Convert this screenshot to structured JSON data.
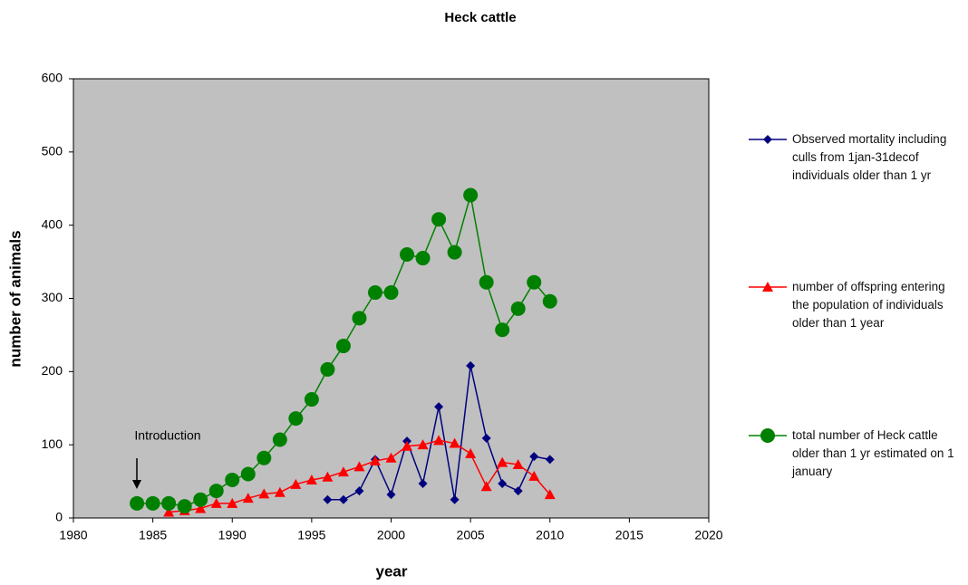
{
  "chart_data": {
    "type": "line",
    "title": "Heck cattle",
    "x_label": "year",
    "y_label": "number of animals",
    "annotation": "Introduction",
    "x": [
      1984,
      1985,
      1986,
      1987,
      1988,
      1989,
      1990,
      1991,
      1992,
      1993,
      1994,
      1995,
      1996,
      1997,
      1998,
      1999,
      2000,
      2001,
      2002,
      2003,
      2004,
      2005,
      2006,
      2007,
      2008,
      2009,
      2010
    ],
    "xlim": [
      1980,
      2020
    ],
    "xticks": [
      1980,
      1985,
      1990,
      1995,
      2000,
      2005,
      2010,
      2015,
      2020
    ],
    "ylim": [
      0,
      600
    ],
    "yticks": [
      0,
      100,
      200,
      300,
      400,
      500,
      600
    ],
    "grid": false,
    "legend": "right",
    "series": [
      {
        "name": "Observed mortality including culls from 1jan-31decof individuals older than 1 yr",
        "color": "#00007f",
        "marker": "diamond",
        "values": [
          null,
          null,
          null,
          null,
          null,
          null,
          null,
          null,
          null,
          null,
          null,
          null,
          25,
          25,
          37,
          80,
          32,
          105,
          47,
          152,
          25,
          208,
          109,
          47,
          37,
          84,
          80
        ]
      },
      {
        "name": "number of offspring entering the population of individuals older than 1 year",
        "color": "#ff0000",
        "marker": "triangle",
        "values": [
          null,
          null,
          8,
          10,
          13,
          20,
          20,
          27,
          33,
          35,
          46,
          52,
          56,
          63,
          70,
          78,
          82,
          98,
          100,
          106,
          102,
          88,
          43,
          76,
          73,
          57,
          32
        ]
      },
      {
        "name": "total number of Heck cattle  older than 1 yr estimated on 1 january",
        "color": "#008000",
        "marker": "circle",
        "values": [
          20,
          20,
          20,
          16,
          25,
          37,
          52,
          60,
          82,
          107,
          136,
          162,
          203,
          235,
          273,
          308,
          308,
          360,
          355,
          408,
          363,
          441,
          322,
          257,
          286,
          322,
          296
        ]
      }
    ]
  }
}
